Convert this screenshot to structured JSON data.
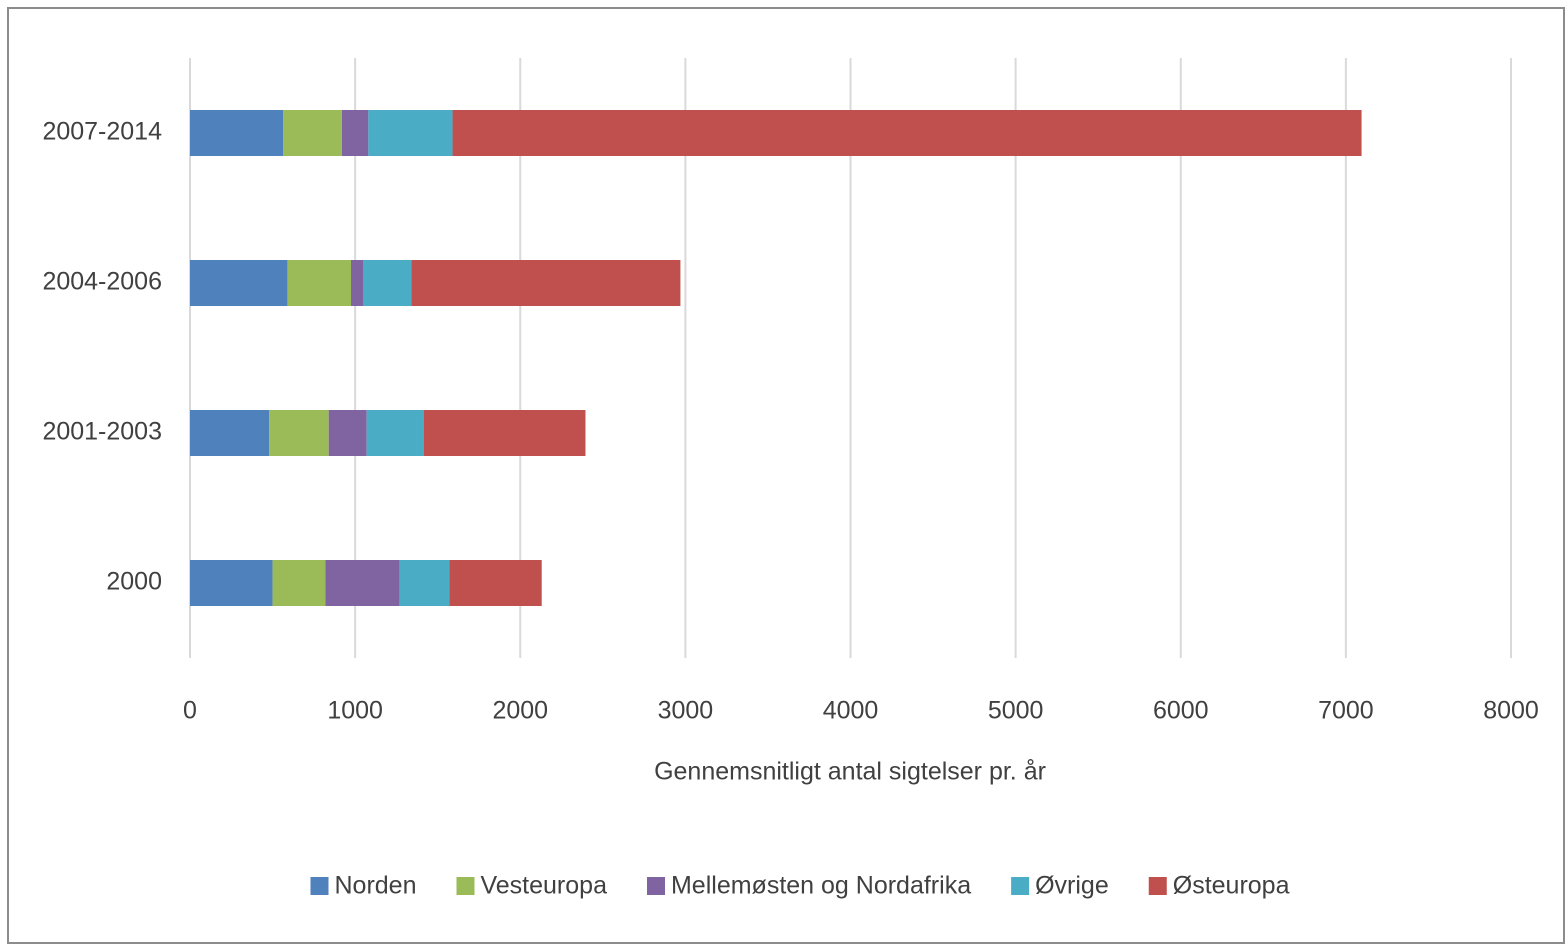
{
  "chart_data": {
    "type": "stacked-barh",
    "x_label": "Gennemsnitligt antal sigtelser pr. år",
    "categories": [
      "2000",
      "2001-2003",
      "2004-2006",
      "2007-2014"
    ],
    "series": [
      {
        "name": "Norden",
        "color": "#4f81bd",
        "values": [
          500,
          480,
          590,
          565
        ]
      },
      {
        "name": "Vesteuropa",
        "color": "#9bbb59",
        "values": [
          320,
          360,
          385,
          355
        ]
      },
      {
        "name": "Mellemøsten og Nordafrika",
        "color": "#8064a2",
        "values": [
          450,
          230,
          75,
          160
        ]
      },
      {
        "name": "Øvrige",
        "color": "#4bacc6",
        "values": [
          300,
          345,
          290,
          510
        ]
      },
      {
        "name": "Østeuropa",
        "color": "#c0504d",
        "values": [
          560,
          980,
          1630,
          5505
        ]
      }
    ],
    "xlim": [
      0,
      8000
    ],
    "xticks": [
      0,
      1000,
      2000,
      3000,
      4000,
      5000,
      6000,
      7000,
      8000
    ],
    "grid": true,
    "legend": "bottom"
  }
}
